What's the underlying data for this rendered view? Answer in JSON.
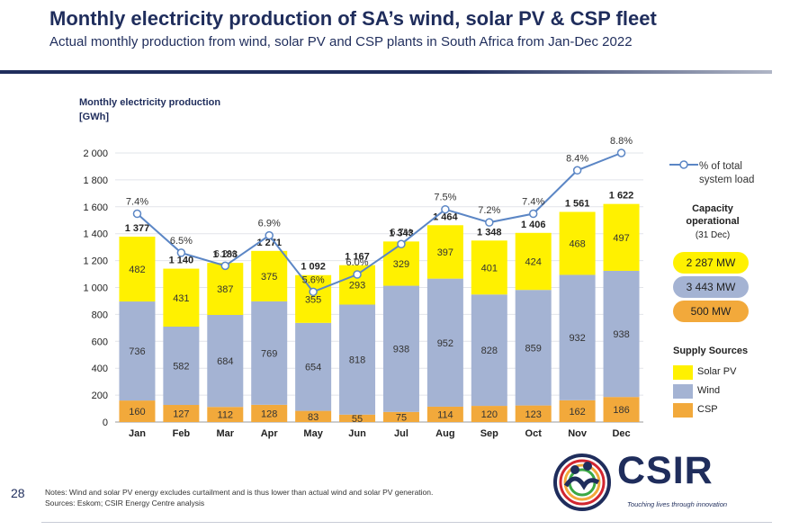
{
  "header": {
    "title": "Monthly electricity production of SA’s wind, solar PV & CSP fleet",
    "subtitle": "Actual monthly production from wind, solar PV and CSP plants in South Africa from Jan-Dec 2022"
  },
  "chart_data": {
    "type": "bar",
    "stacked": true,
    "ylabel_line1": "Monthly electricity  production",
    "ylabel_line2": "[GWh]",
    "ylim": [
      0,
      2000
    ],
    "yticks": [
      "0",
      "200",
      "400",
      "600",
      "800",
      "1 000",
      "1 200",
      "1 400",
      "1 600",
      "1 800",
      "2 000"
    ],
    "categories": [
      "Jan",
      "Feb",
      "Mar",
      "Apr",
      "May",
      "Jun",
      "Jul",
      "Aug",
      "Sep",
      "Oct",
      "Nov",
      "Dec"
    ],
    "series": [
      {
        "name": "CSP",
        "color": "#f2a93b",
        "values": [
          160,
          127,
          112,
          128,
          83,
          55,
          75,
          114,
          120,
          123,
          162,
          186
        ]
      },
      {
        "name": "Wind",
        "color": "#a4b3d3",
        "values": [
          736,
          582,
          684,
          769,
          654,
          818,
          938,
          952,
          828,
          859,
          932,
          938
        ]
      },
      {
        "name": "Solar PV",
        "color": "#fff100",
        "values": [
          482,
          431,
          387,
          375,
          355,
          293,
          329,
          397,
          401,
          424,
          468,
          497
        ]
      }
    ],
    "totals": [
      "1 377",
      "1 140",
      "1 183",
      "1 271",
      "1 092",
      "1 167",
      "1 343",
      "1 464",
      "1 348",
      "1 406",
      "1 561",
      "1 622"
    ],
    "line": {
      "name": "% of total system load",
      "color": "#5b86c5",
      "values": [
        7.4,
        6.5,
        6.2,
        6.9,
        5.6,
        6.0,
        6.7,
        7.5,
        7.2,
        7.4,
        8.4,
        8.8
      ],
      "labels": [
        "7.4%",
        "6.5%",
        "6.2%",
        "6.9%",
        "5.6%",
        "6.0%",
        "6.7%",
        "7.5%",
        "7.2%",
        "7.4%",
        "8.4%",
        "8.8%"
      ],
      "plot_range": [
        2.6,
        8.8
      ]
    }
  },
  "legend": {
    "line_label_1": "% of total",
    "line_label_2": "system load",
    "capacity_title_1": "Capacity",
    "capacity_title_2": "operational",
    "capacity_date": "(31 Dec)",
    "capacities": [
      {
        "value": "2 287 MW",
        "color": "#fff100"
      },
      {
        "value": "3 443 MW",
        "color": "#a4b3d3"
      },
      {
        "value": "500 MW",
        "color": "#f2a93b"
      }
    ],
    "supply_title": "Supply Sources",
    "sources": [
      {
        "label": "Solar PV",
        "color": "#fff100"
      },
      {
        "label": "Wind",
        "color": "#a4b3d3"
      },
      {
        "label": "CSP",
        "color": "#f2a93b"
      }
    ]
  },
  "footer": {
    "page_number": "28",
    "note_line_1": "Notes: Wind and solar PV energy excludes curtailment and is thus lower than actual wind and solar PV generation.",
    "note_line_2": "Sources: Eskom; CSIR Energy Centre analysis",
    "logo_text": "CSIR",
    "logo_tagline": "Touching lives through innovation"
  }
}
